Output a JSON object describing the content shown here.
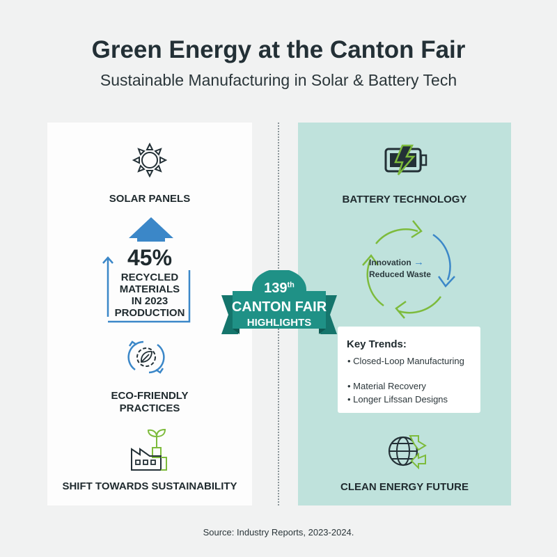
{
  "header": {
    "title": "Green Energy at the Canton Fair",
    "subtitle": "Sustainable Manufacturing in Solar & Battery Tech"
  },
  "left": {
    "solar_label": "SOLAR PANELS",
    "stat": {
      "value": "45%",
      "lines": [
        "RECYCLED",
        "MATERIALS",
        "IN 2023",
        "PRODUCTION"
      ]
    },
    "eco_label": [
      "ECO-FRIENDLY",
      "PRACTICES"
    ],
    "shift_label": "SHIFT TOWARDS SUSTAINABILITY"
  },
  "center": {
    "number": "139",
    "suffix": "th",
    "line1": "CANTON FAIR",
    "line2": "HIGHLIGHTS"
  },
  "right": {
    "battery_label": "BATTERY TECHNOLOGY",
    "cycle": {
      "line1": "Innovation",
      "arrow": "→",
      "line2": "Reduced Waste"
    },
    "trends": {
      "title": "Key Trends:",
      "items": [
        "Closed-Loop Manufacturing",
        "Material Recovery",
        "Longer Lifssan Designs"
      ]
    },
    "future_label": "CLEAN ENERGY FUTURE"
  },
  "footer": {
    "source": "Source: Industry Reports, 2023-2024."
  },
  "colors": {
    "background": "#f1f2f2",
    "right_panel": "#bfe2dc",
    "teal_ribbon": "#1f9186",
    "blue": "#3b87c8",
    "green": "#7dbb3c",
    "dark": "#233036"
  },
  "icons": [
    "sun-icon",
    "up-arrow-icon",
    "gear-leaf-icon",
    "factory-icon",
    "battery-icon",
    "cycle-arrows-icon",
    "globe-recycle-icon"
  ]
}
